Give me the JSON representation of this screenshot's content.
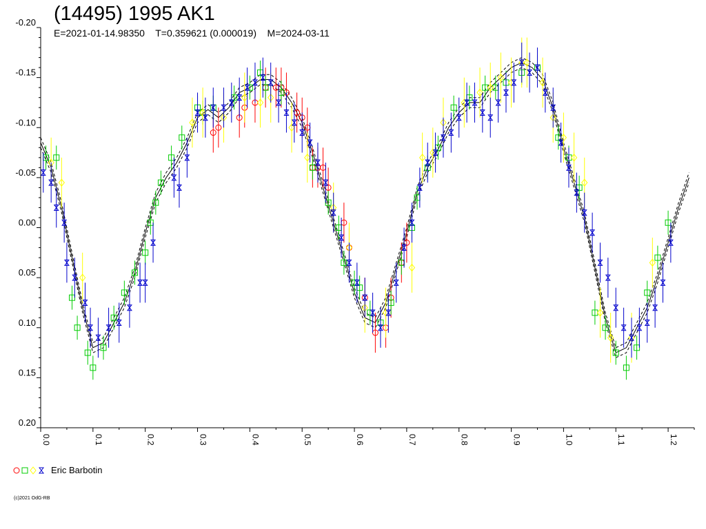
{
  "title": "(14495) 1995 AK1",
  "subtitle": "E=2021-01-14.98350    T=0.359621 (0.000019)    M=2024-03-11",
  "legend": {
    "label": "Eric Barbotin",
    "marker_colors": [
      "#ff0000",
      "#00cc00",
      "#ffff00",
      "#0000cc"
    ]
  },
  "copyright": "(c)2021 OdG-RB",
  "colors": {
    "red": "#ff0000",
    "green": "#00cc00",
    "yellow": "#ffff00",
    "blue": "#0000cc",
    "axis": "#000000"
  },
  "chart_data": {
    "type": "scatter",
    "title": "(14495) 1995 AK1",
    "xlim": [
      0,
      1.25
    ],
    "ylim": [
      -0.2,
      0.2
    ],
    "y_inverted": true,
    "x_ticks": [
      "0.0",
      "0.1",
      "0.2",
      "0.3",
      "0.4",
      "0.5",
      "0.6",
      "0.7",
      "0.8",
      "0.9",
      "1.0",
      "1.1",
      "1.2"
    ],
    "y_ticks": [
      "-0.20",
      "-0.15",
      "-0.10",
      "-0.05",
      "0.00",
      "0.05",
      "0.10",
      "0.15",
      "0.20"
    ],
    "fit_curve": {
      "name": "fit",
      "x": [
        0.0,
        0.02,
        0.04,
        0.06,
        0.08,
        0.1,
        0.12,
        0.14,
        0.16,
        0.18,
        0.2,
        0.22,
        0.24,
        0.26,
        0.28,
        0.3,
        0.32,
        0.34,
        0.36,
        0.38,
        0.4,
        0.42,
        0.44,
        0.46,
        0.48,
        0.5,
        0.52,
        0.54,
        0.56,
        0.58,
        0.6,
        0.62,
        0.64,
        0.66,
        0.68,
        0.7,
        0.72,
        0.74,
        0.76,
        0.78,
        0.8,
        0.82,
        0.84,
        0.86,
        0.88,
        0.9,
        0.92,
        0.94,
        0.96,
        0.98,
        1.0,
        1.02,
        1.04,
        1.06,
        1.08,
        1.1,
        1.12,
        1.14,
        1.16,
        1.18,
        1.2,
        1.22,
        1.24
      ],
      "y": [
        -0.085,
        -0.06,
        -0.02,
        0.03,
        0.08,
        0.12,
        0.115,
        0.095,
        0.075,
        0.045,
        0.005,
        -0.03,
        -0.05,
        -0.065,
        -0.085,
        -0.11,
        -0.118,
        -0.11,
        -0.12,
        -0.135,
        -0.14,
        -0.148,
        -0.148,
        -0.14,
        -0.125,
        -0.105,
        -0.075,
        -0.04,
        -0.005,
        0.03,
        0.065,
        0.09,
        0.095,
        0.075,
        0.04,
        0.005,
        -0.035,
        -0.06,
        -0.078,
        -0.1,
        -0.115,
        -0.125,
        -0.125,
        -0.14,
        -0.15,
        -0.16,
        -0.165,
        -0.16,
        -0.148,
        -0.12,
        -0.08,
        -0.045,
        -0.01,
        0.04,
        0.09,
        0.125,
        0.12,
        0.1,
        0.08,
        0.05,
        0.015,
        -0.02,
        -0.05
      ],
      "band": 0.005
    },
    "series": [
      {
        "name": "red",
        "marker": "circle",
        "color": "#ff0000",
        "x": [
          0.33,
          0.34,
          0.38,
          0.39,
          0.41,
          0.43,
          0.45,
          0.46,
          0.47,
          0.49,
          0.5,
          0.51,
          0.52,
          0.53,
          0.54,
          0.55,
          0.58,
          0.59,
          0.62,
          0.64,
          0.66,
          0.67,
          0.69,
          0.7
        ],
        "y": [
          -0.095,
          -0.1,
          -0.11,
          -0.12,
          -0.125,
          -0.14,
          -0.14,
          -0.14,
          -0.135,
          -0.115,
          -0.11,
          -0.1,
          -0.06,
          -0.06,
          -0.06,
          -0.04,
          -0.005,
          0.02,
          0.07,
          0.105,
          0.1,
          0.07,
          0.035,
          0.015
        ],
        "err": 0.02
      },
      {
        "name": "green",
        "marker": "square",
        "color": "#00cc00",
        "x": [
          0.01,
          0.03,
          0.06,
          0.07,
          0.09,
          0.1,
          0.12,
          0.14,
          0.16,
          0.18,
          0.2,
          0.21,
          0.22,
          0.23,
          0.25,
          0.27,
          0.3,
          0.31,
          0.33,
          0.37,
          0.4,
          0.42,
          0.43,
          0.46,
          0.52,
          0.55,
          0.57,
          0.58,
          0.6,
          0.61,
          0.63,
          0.65,
          0.67,
          0.69,
          0.71,
          0.72,
          0.74,
          0.76,
          0.79,
          0.82,
          0.85,
          0.87,
          0.89,
          0.92,
          0.95,
          0.99,
          1.01,
          1.03,
          1.06,
          1.08,
          1.1,
          1.12,
          1.14,
          1.16,
          1.18,
          1.2
        ],
        "y": [
          -0.07,
          -0.07,
          0.07,
          0.1,
          0.125,
          0.14,
          0.12,
          0.09,
          0.065,
          0.045,
          0.025,
          -0.005,
          -0.025,
          -0.045,
          -0.07,
          -0.09,
          -0.12,
          -0.115,
          -0.12,
          -0.13,
          -0.14,
          -0.155,
          -0.14,
          -0.135,
          -0.06,
          -0.025,
          0.0,
          0.035,
          0.055,
          0.06,
          0.085,
          0.095,
          0.075,
          0.035,
          0.0,
          -0.03,
          -0.06,
          -0.08,
          -0.12,
          -0.13,
          -0.14,
          -0.14,
          -0.145,
          -0.155,
          -0.16,
          -0.09,
          -0.07,
          -0.04,
          0.085,
          0.1,
          0.125,
          0.14,
          0.12,
          0.065,
          0.03,
          -0.005
        ],
        "err": 0.012
      },
      {
        "name": "yellow",
        "marker": "diamond",
        "color": "#ffff00",
        "x": [
          0.02,
          0.04,
          0.08,
          0.29,
          0.31,
          0.35,
          0.39,
          0.42,
          0.44,
          0.48,
          0.51,
          0.56,
          0.59,
          0.62,
          0.66,
          0.71,
          0.73,
          0.75,
          0.77,
          0.81,
          0.84,
          0.86,
          0.88,
          0.9,
          0.92,
          0.93,
          0.96,
          0.98,
          1.0,
          1.02,
          1.04,
          1.07,
          1.09,
          1.13,
          1.17
        ],
        "y": [
          -0.065,
          -0.045,
          0.05,
          -0.105,
          -0.115,
          -0.11,
          -0.13,
          -0.125,
          -0.13,
          -0.1,
          -0.07,
          -0.02,
          0.02,
          0.08,
          0.085,
          0.04,
          -0.07,
          -0.075,
          -0.105,
          -0.125,
          -0.135,
          -0.14,
          -0.15,
          -0.145,
          -0.165,
          -0.165,
          -0.145,
          -0.11,
          -0.09,
          -0.07,
          -0.045,
          0.085,
          0.11,
          0.11,
          0.035
        ],
        "err": 0.025
      },
      {
        "name": "blue",
        "marker": "hourglass",
        "color": "#0000cc",
        "x": [
          0.005,
          0.02,
          0.03,
          0.045,
          0.05,
          0.065,
          0.085,
          0.095,
          0.11,
          0.13,
          0.15,
          0.17,
          0.19,
          0.2,
          0.215,
          0.255,
          0.265,
          0.28,
          0.3,
          0.315,
          0.33,
          0.35,
          0.365,
          0.38,
          0.395,
          0.41,
          0.425,
          0.44,
          0.455,
          0.47,
          0.485,
          0.5,
          0.515,
          0.53,
          0.545,
          0.56,
          0.575,
          0.59,
          0.605,
          0.62,
          0.635,
          0.65,
          0.665,
          0.68,
          0.695,
          0.71,
          0.725,
          0.74,
          0.755,
          0.77,
          0.785,
          0.8,
          0.815,
          0.83,
          0.845,
          0.86,
          0.875,
          0.89,
          0.905,
          0.92,
          0.935,
          0.95,
          0.965,
          0.98,
          0.995,
          1.01,
          1.025,
          1.04,
          1.055,
          1.07,
          1.085,
          1.1,
          1.115,
          1.13,
          1.145,
          1.16,
          1.175,
          1.19,
          1.205
        ],
        "y": [
          -0.055,
          -0.045,
          -0.02,
          -0.005,
          0.035,
          0.05,
          0.075,
          0.1,
          0.11,
          0.1,
          0.095,
          0.08,
          0.055,
          0.055,
          0.015,
          -0.05,
          -0.04,
          -0.07,
          -0.115,
          -0.11,
          -0.12,
          -0.12,
          -0.125,
          -0.13,
          -0.14,
          -0.145,
          -0.15,
          -0.145,
          -0.125,
          -0.115,
          -0.105,
          -0.095,
          -0.085,
          -0.065,
          -0.045,
          -0.015,
          0.01,
          0.035,
          0.055,
          0.07,
          0.085,
          0.1,
          0.085,
          0.055,
          0.02,
          -0.005,
          -0.04,
          -0.065,
          -0.075,
          -0.09,
          -0.095,
          -0.11,
          -0.125,
          -0.125,
          -0.115,
          -0.11,
          -0.125,
          -0.135,
          -0.145,
          -0.165,
          -0.155,
          -0.16,
          -0.135,
          -0.12,
          -0.085,
          -0.06,
          -0.035,
          -0.015,
          0.005,
          0.035,
          0.05,
          0.08,
          0.1,
          0.11,
          0.1,
          0.095,
          0.08,
          0.055,
          0.015
        ],
        "err": 0.02
      }
    ]
  }
}
